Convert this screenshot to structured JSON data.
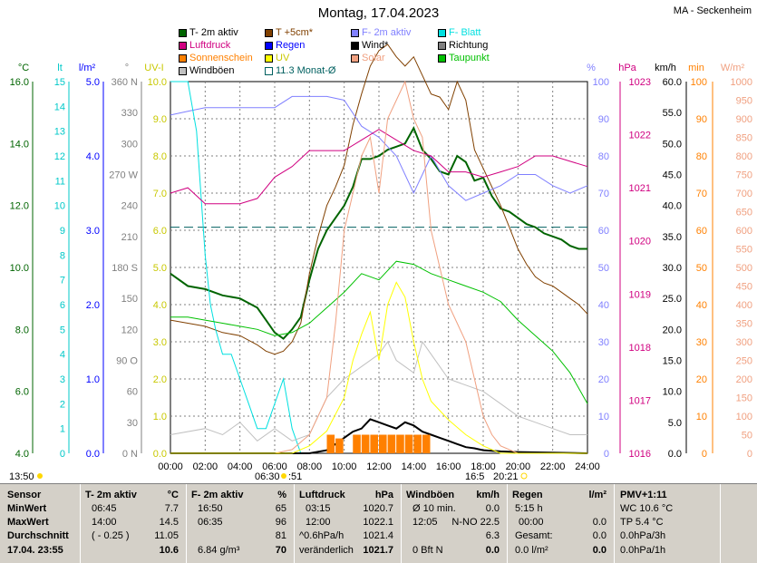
{
  "title": "Montag, 17.04.2023",
  "station": "MA - Seckenheim",
  "legend": [
    {
      "label": "T- 2m aktiv",
      "color": "#006400"
    },
    {
      "label": "T +5cm*",
      "color": "#804000"
    },
    {
      "label": "F- 2m aktiv",
      "color": "#8080ff"
    },
    {
      "label": "F- Blatt",
      "color": "#00e0e0"
    },
    {
      "label": "Luftdruck",
      "color": "#d00080"
    },
    {
      "label": "Regen",
      "color": "#0000ff"
    },
    {
      "label": "Wind*",
      "color": "#000000"
    },
    {
      "label": "Richtung",
      "color": "#808080"
    },
    {
      "label": "Sonnenschein",
      "color": "#ff8000"
    },
    {
      "label": "UV",
      "color": "#ffff00"
    },
    {
      "label": "Solar",
      "color": "#f0a080"
    },
    {
      "label": "Taupunkt",
      "color": "#00c000"
    },
    {
      "label": "Windböen",
      "color": "#c0c0c0"
    },
    {
      "label": "11.3 Monat-Ø",
      "color": "#006060"
    }
  ],
  "axes": {
    "units": [
      "°C",
      "lt",
      "l/m²",
      "°",
      "UV-I",
      "%",
      "hPa",
      "km/h",
      "min",
      "W/m²"
    ],
    "temp": [
      "16.0",
      "14.0",
      "12.0",
      "10.0",
      "8.0",
      "6.0",
      "4.0"
    ],
    "lt": [
      "15",
      "14",
      "13",
      "12",
      "11",
      "10",
      "9",
      "8",
      "7",
      "6",
      "5",
      "4",
      "3",
      "2",
      "1",
      "0"
    ],
    "rain": [
      "5.0",
      "4.0",
      "3.0",
      "2.0",
      "1.0",
      "0.0"
    ],
    "dir": [
      "360 N",
      "330",
      "300",
      "270 W",
      "240",
      "210",
      "180 S",
      "150",
      "120",
      "90 O",
      "60",
      "30",
      "0 N"
    ],
    "uv": [
      "10.0",
      "9.0",
      "8.0",
      "7.0",
      "6.0",
      "5.0",
      "4.0",
      "3.0",
      "2.0",
      "1.0",
      "0.0"
    ],
    "hum": [
      "100",
      "90",
      "80",
      "70",
      "60",
      "50",
      "40",
      "30",
      "20",
      "10",
      "0"
    ],
    "press": [
      "1023",
      "1022",
      "1021",
      "1020",
      "1019",
      "1018",
      "1017",
      "1016"
    ],
    "wind": [
      "60.0",
      "55.0",
      "50.0",
      "45.0",
      "40.0",
      "35.0",
      "30.0",
      "25.0",
      "20.0",
      "15.0",
      "10.0",
      "5.0",
      "0.0"
    ],
    "min": [
      "100",
      "90",
      "80",
      "70",
      "60",
      "50",
      "40",
      "30",
      "20",
      "10",
      "0"
    ],
    "solar": [
      "1000",
      "950",
      "900",
      "850",
      "800",
      "750",
      "700",
      "650",
      "600",
      "550",
      "500",
      "450",
      "400",
      "350",
      "300",
      "250",
      "200",
      "150",
      "100",
      "50",
      "0"
    ],
    "hours": [
      "00:00",
      "02:00",
      "04:00",
      "06:00",
      "08:00",
      "10:00",
      "12:00",
      "14:00",
      "16:00",
      "18:00",
      "20:00",
      "22:00",
      "24:00"
    ]
  },
  "sun_times": {
    "sunrise": "06:30",
    "sunset": "20:21",
    "moon": "13:50",
    "sun_extra": ":51",
    "mid": "16:5"
  },
  "chart_data": {
    "type": "line",
    "x_unit": "hour of day",
    "xlim": [
      0,
      24
    ],
    "monthly_avg_temp": 11.3,
    "series": [
      {
        "name": "T- 2m aktiv",
        "axis": "°C",
        "ylim": [
          4,
          16
        ],
        "x": [
          0,
          1,
          2,
          3,
          4,
          5,
          5.5,
          6,
          6.5,
          7,
          7.5,
          8,
          8.5,
          9,
          9.5,
          10,
          10.5,
          11,
          11.5,
          12,
          12.5,
          13,
          13.5,
          14,
          14.5,
          15,
          15.5,
          16,
          16.5,
          17,
          17.5,
          18,
          18.5,
          19,
          19.5,
          20,
          20.5,
          21,
          21.5,
          22,
          22.5,
          23,
          23.5,
          24
        ],
        "y": [
          9.8,
          9.4,
          9.3,
          9.1,
          9.0,
          8.7,
          8.3,
          7.9,
          7.7,
          8.0,
          8.4,
          9.6,
          10.6,
          11.2,
          11.6,
          12.0,
          12.6,
          13.5,
          13.5,
          13.6,
          13.8,
          13.9,
          14.0,
          14.5,
          13.8,
          13.5,
          13.1,
          13.0,
          13.6,
          13.4,
          12.8,
          12.9,
          12.3,
          11.9,
          11.8,
          11.6,
          11.4,
          11.3,
          11.1,
          11.0,
          10.9,
          10.7,
          10.6,
          10.6
        ]
      },
      {
        "name": "T +5cm*",
        "axis": "°C",
        "ylim": [
          4,
          16
        ],
        "x": [
          0,
          1,
          2,
          3,
          4,
          5,
          5.5,
          6,
          6.5,
          7,
          7.5,
          8,
          8.5,
          9,
          9.5,
          10,
          10.5,
          11,
          11.5,
          12,
          12.5,
          13,
          13.5,
          14,
          14.5,
          15,
          15.5,
          16,
          16.5,
          17,
          17.5,
          18,
          18.5,
          19,
          19.5,
          20,
          20.5,
          21,
          21.5,
          22,
          22.5,
          23,
          23.5,
          24
        ],
        "y": [
          8.3,
          8.2,
          8.1,
          7.9,
          7.8,
          7.5,
          7.3,
          7.2,
          7.3,
          7.6,
          8.2,
          9.8,
          11.0,
          12.0,
          12.6,
          13.3,
          14.6,
          15.6,
          16.5,
          17.0,
          17.2,
          16.8,
          16.5,
          16.8,
          16.2,
          15.6,
          15.5,
          15.1,
          16.0,
          15.4,
          13.8,
          13.2,
          12.6,
          12.0,
          11.3,
          10.6,
          10.1,
          9.7,
          9.5,
          9.4,
          9.2,
          9.0,
          8.8,
          8.5
        ]
      },
      {
        "name": "F- 2m aktiv",
        "axis": "%",
        "ylim": [
          0,
          100
        ],
        "x": [
          0,
          1,
          2,
          3,
          4,
          5,
          6,
          7,
          7.5,
          8,
          9,
          10,
          11,
          12,
          13,
          14,
          15,
          16,
          17,
          18,
          19,
          20,
          21,
          22,
          23,
          24
        ],
        "y": [
          91,
          92,
          93,
          93,
          93,
          93,
          93,
          96,
          96,
          96,
          96,
          95,
          88,
          85,
          80,
          70,
          80,
          72,
          68,
          70,
          72,
          75,
          75,
          72,
          70,
          72
        ]
      },
      {
        "name": "F- Blatt",
        "axis": "lt",
        "ylim": [
          0,
          15
        ],
        "x": [
          0,
          1,
          1.5,
          1.8,
          2.0,
          2.3,
          2.6,
          3.0,
          3.5,
          4.0,
          4.5,
          5.0,
          5.5,
          6.0,
          6.5,
          7.0,
          7.5
        ],
        "y": [
          15,
          15,
          13,
          10,
          8,
          6,
          5,
          4,
          4,
          3,
          2,
          1,
          1,
          2,
          3,
          1,
          0
        ]
      },
      {
        "name": "Luftdruck",
        "axis": "hPa",
        "ylim": [
          1016,
          1023
        ],
        "x": [
          0,
          1,
          2,
          3,
          4,
          5,
          6,
          7,
          8,
          9,
          10,
          11,
          12,
          13,
          14,
          15,
          16,
          17,
          18,
          19,
          20,
          21,
          22,
          23,
          24
        ],
        "y": [
          1020.9,
          1021.0,
          1020.7,
          1020.7,
          1020.7,
          1020.8,
          1021.2,
          1021.4,
          1021.7,
          1021.7,
          1021.7,
          1021.9,
          1022.1,
          1021.9,
          1021.7,
          1021.6,
          1021.3,
          1021.3,
          1021.2,
          1021.3,
          1021.4,
          1021.6,
          1021.6,
          1021.5,
          1021.4
        ]
      },
      {
        "name": "Taupunkt",
        "axis": "°C",
        "ylim": [
          4,
          16
        ],
        "x": [
          0,
          1,
          2,
          3,
          4,
          5,
          6,
          7,
          8,
          9,
          10,
          11,
          12,
          13,
          14,
          15,
          16,
          17,
          18,
          19,
          20,
          21,
          22,
          23,
          24
        ],
        "y": [
          8.4,
          8.4,
          8.3,
          8.2,
          8.1,
          8.0,
          7.8,
          7.9,
          8.2,
          8.7,
          9.2,
          9.8,
          9.6,
          10.2,
          10.1,
          9.8,
          9.6,
          9.4,
          9.2,
          8.9,
          8.3,
          7.8,
          7.3,
          6.6,
          5.6
        ]
      },
      {
        "name": "Wind*",
        "axis": "km/h",
        "ylim": [
          0,
          60
        ],
        "x": [
          0,
          8,
          9,
          9.5,
          10,
          10.5,
          11,
          11.5,
          12,
          12.5,
          13,
          13.5,
          14,
          14.5,
          15,
          15.5,
          16,
          16.5,
          17,
          17.5,
          18,
          19,
          20,
          24
        ],
        "y": [
          0,
          0,
          0.5,
          1.5,
          2.5,
          3.5,
          4.0,
          5.5,
          5.0,
          4.5,
          4.0,
          5.0,
          4.5,
          3.5,
          3.0,
          2.5,
          2.0,
          1.5,
          1.0,
          0.8,
          0.5,
          0.3,
          0.2,
          0
        ]
      },
      {
        "name": "Windböen",
        "axis": "km/h",
        "ylim": [
          0,
          60
        ],
        "x": [
          0,
          2,
          3,
          4,
          5,
          6,
          7,
          8,
          9,
          10,
          11,
          12,
          12.5,
          13,
          14,
          14.5,
          15,
          16,
          17,
          18,
          19,
          20,
          21,
          22,
          23,
          24
        ],
        "y": [
          3,
          4,
          3,
          5,
          2,
          4,
          2,
          3,
          9,
          12,
          14,
          16,
          18,
          15,
          13,
          18,
          16,
          12,
          11,
          10,
          8,
          6,
          5,
          4,
          3,
          3
        ]
      },
      {
        "name": "Solar",
        "axis": "W/m²",
        "ylim": [
          0,
          1000
        ],
        "x": [
          0,
          6,
          7,
          8,
          9,
          9.5,
          10,
          10.5,
          11,
          11.5,
          12,
          12.5,
          13,
          13.5,
          14,
          14.5,
          15,
          15.5,
          16,
          16.5,
          17,
          17.5,
          18,
          18.5,
          19,
          20,
          24
        ],
        "y": [
          0,
          0,
          10,
          50,
          150,
          350,
          600,
          700,
          800,
          850,
          700,
          900,
          950,
          1000,
          900,
          850,
          600,
          500,
          400,
          350,
          300,
          200,
          100,
          50,
          20,
          0,
          0
        ]
      },
      {
        "name": "UV",
        "axis": "UV-I",
        "ylim": [
          0,
          10
        ],
        "x": [
          0,
          7,
          8,
          9,
          10,
          10.5,
          11,
          11.5,
          12,
          12.5,
          13,
          13.5,
          14,
          14.5,
          15,
          16,
          17,
          18,
          19,
          24
        ],
        "y": [
          0,
          0,
          0.2,
          0.6,
          1.5,
          2.5,
          3.2,
          3.8,
          2.5,
          4.0,
          4.6,
          4.2,
          3.0,
          2.0,
          1.4,
          0.9,
          0.5,
          0.2,
          0,
          0
        ]
      },
      {
        "name": "Sonnenschein",
        "axis": "min",
        "ylim": [
          0,
          100
        ],
        "x": [
          9.0,
          9.5,
          10.5,
          11.0,
          11.5,
          12.0,
          12.5,
          13.0,
          13.5,
          14.0,
          14.5
        ],
        "y": [
          5,
          4,
          5,
          5,
          5,
          5,
          5,
          5,
          5,
          5,
          5
        ]
      }
    ]
  },
  "summary": {
    "sensor": {
      "header": "Sensor",
      "rows": [
        "MinWert",
        "MaxWert",
        "Durchschnitt",
        "17.04. 23:55"
      ]
    },
    "temp": {
      "header": "T- 2m aktiv",
      "unit": "°C",
      "rows": [
        [
          "06:45",
          "7.7"
        ],
        [
          "14:00",
          "14.5"
        ],
        [
          "( - 0.25 )",
          "11.05"
        ],
        [
          "",
          "10.6"
        ]
      ]
    },
    "hum": {
      "header": "F- 2m aktiv",
      "unit": "%",
      "rows": [
        [
          "16:50",
          "65"
        ],
        [
          "06:35",
          "96"
        ],
        [
          "",
          "81"
        ],
        [
          "6.84 g/m³",
          "70"
        ]
      ]
    },
    "press": {
      "header": "Luftdruck",
      "unit": "hPa",
      "rows": [
        [
          "03:15",
          "1020.7"
        ],
        [
          "12:00",
          "1022.1"
        ],
        [
          "^0.6hPa/h",
          "1021.4"
        ],
        [
          "veränderlich",
          "1021.7"
        ]
      ]
    },
    "wind": {
      "header": "Windböen",
      "unit": "km/h",
      "rows": [
        [
          "Ø 10 min.",
          "0.0"
        ],
        [
          "12:05",
          "N-NO 22.5"
        ],
        [
          "",
          "6.3"
        ],
        [
          "0 Bft N",
          "0.0"
        ]
      ]
    },
    "rain": {
      "header": "Regen",
      "unit": "l/m²",
      "rows": [
        [
          "5:15 h",
          ""
        ],
        [
          "00:00",
          "0.0"
        ],
        [
          "Gesamt:",
          "0.0"
        ],
        [
          "0.0 l/m²",
          "0.0"
        ]
      ]
    },
    "pmv": {
      "header": "PMV+1:11",
      "rows": [
        "WC 10.6 °C",
        "TP 5.4 °C",
        "0.0hPa/3h",
        "0.0hPa/1h"
      ]
    }
  }
}
